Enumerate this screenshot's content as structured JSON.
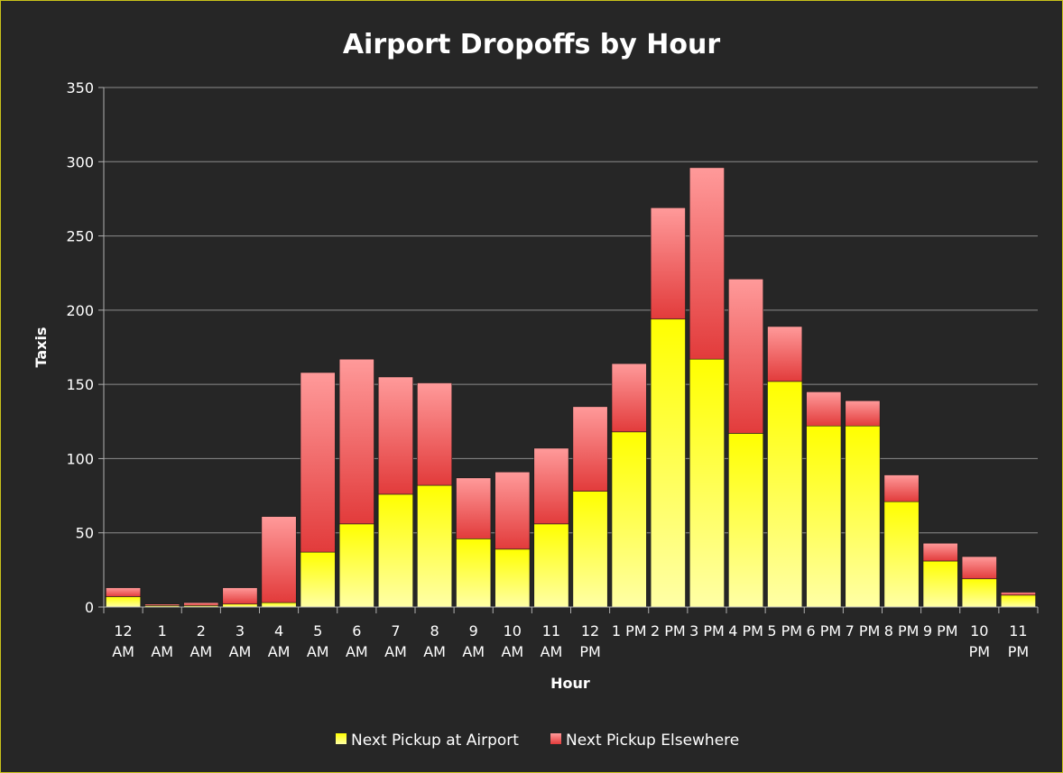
{
  "chart_data": {
    "type": "bar",
    "stacked": true,
    "title": "Airport Dropoffs by Hour",
    "xlabel": "Hour",
    "ylabel": "Taxis",
    "ylim": [
      0,
      350
    ],
    "yticks": [
      0,
      50,
      100,
      150,
      200,
      250,
      300,
      350
    ],
    "grid": true,
    "legend_position": "bottom",
    "categories": [
      [
        "12",
        "AM"
      ],
      [
        "1",
        "AM"
      ],
      [
        "2",
        "AM"
      ],
      [
        "3",
        "AM"
      ],
      [
        "4",
        "AM"
      ],
      [
        "5",
        "AM"
      ],
      [
        "6",
        "AM"
      ],
      [
        "7",
        "AM"
      ],
      [
        "8",
        "AM"
      ],
      [
        "9",
        "AM"
      ],
      [
        "10",
        "AM"
      ],
      [
        "11",
        "AM"
      ],
      [
        "12",
        "PM"
      ],
      [
        "1 PM"
      ],
      [
        "2 PM"
      ],
      [
        "3 PM"
      ],
      [
        "4 PM"
      ],
      [
        "5 PM"
      ],
      [
        "6 PM"
      ],
      [
        "7 PM"
      ],
      [
        "8 PM"
      ],
      [
        "9 PM"
      ],
      [
        "10",
        "PM"
      ],
      [
        "11",
        "PM"
      ]
    ],
    "series": [
      {
        "name": "Next Pickup at Airport",
        "color": "#ffff00",
        "values": [
          7,
          1,
          1,
          2,
          3,
          37,
          56,
          76,
          82,
          46,
          39,
          56,
          78,
          118,
          194,
          167,
          117,
          152,
          122,
          122,
          71,
          31,
          19,
          8
        ]
      },
      {
        "name": "Next Pickup Elsewhere",
        "color": "#e84848",
        "values": [
          6,
          1,
          2,
          11,
          58,
          121,
          111,
          79,
          69,
          41,
          52,
          51,
          57,
          46,
          75,
          129,
          104,
          37,
          23,
          17,
          18,
          12,
          15,
          2
        ]
      }
    ]
  }
}
